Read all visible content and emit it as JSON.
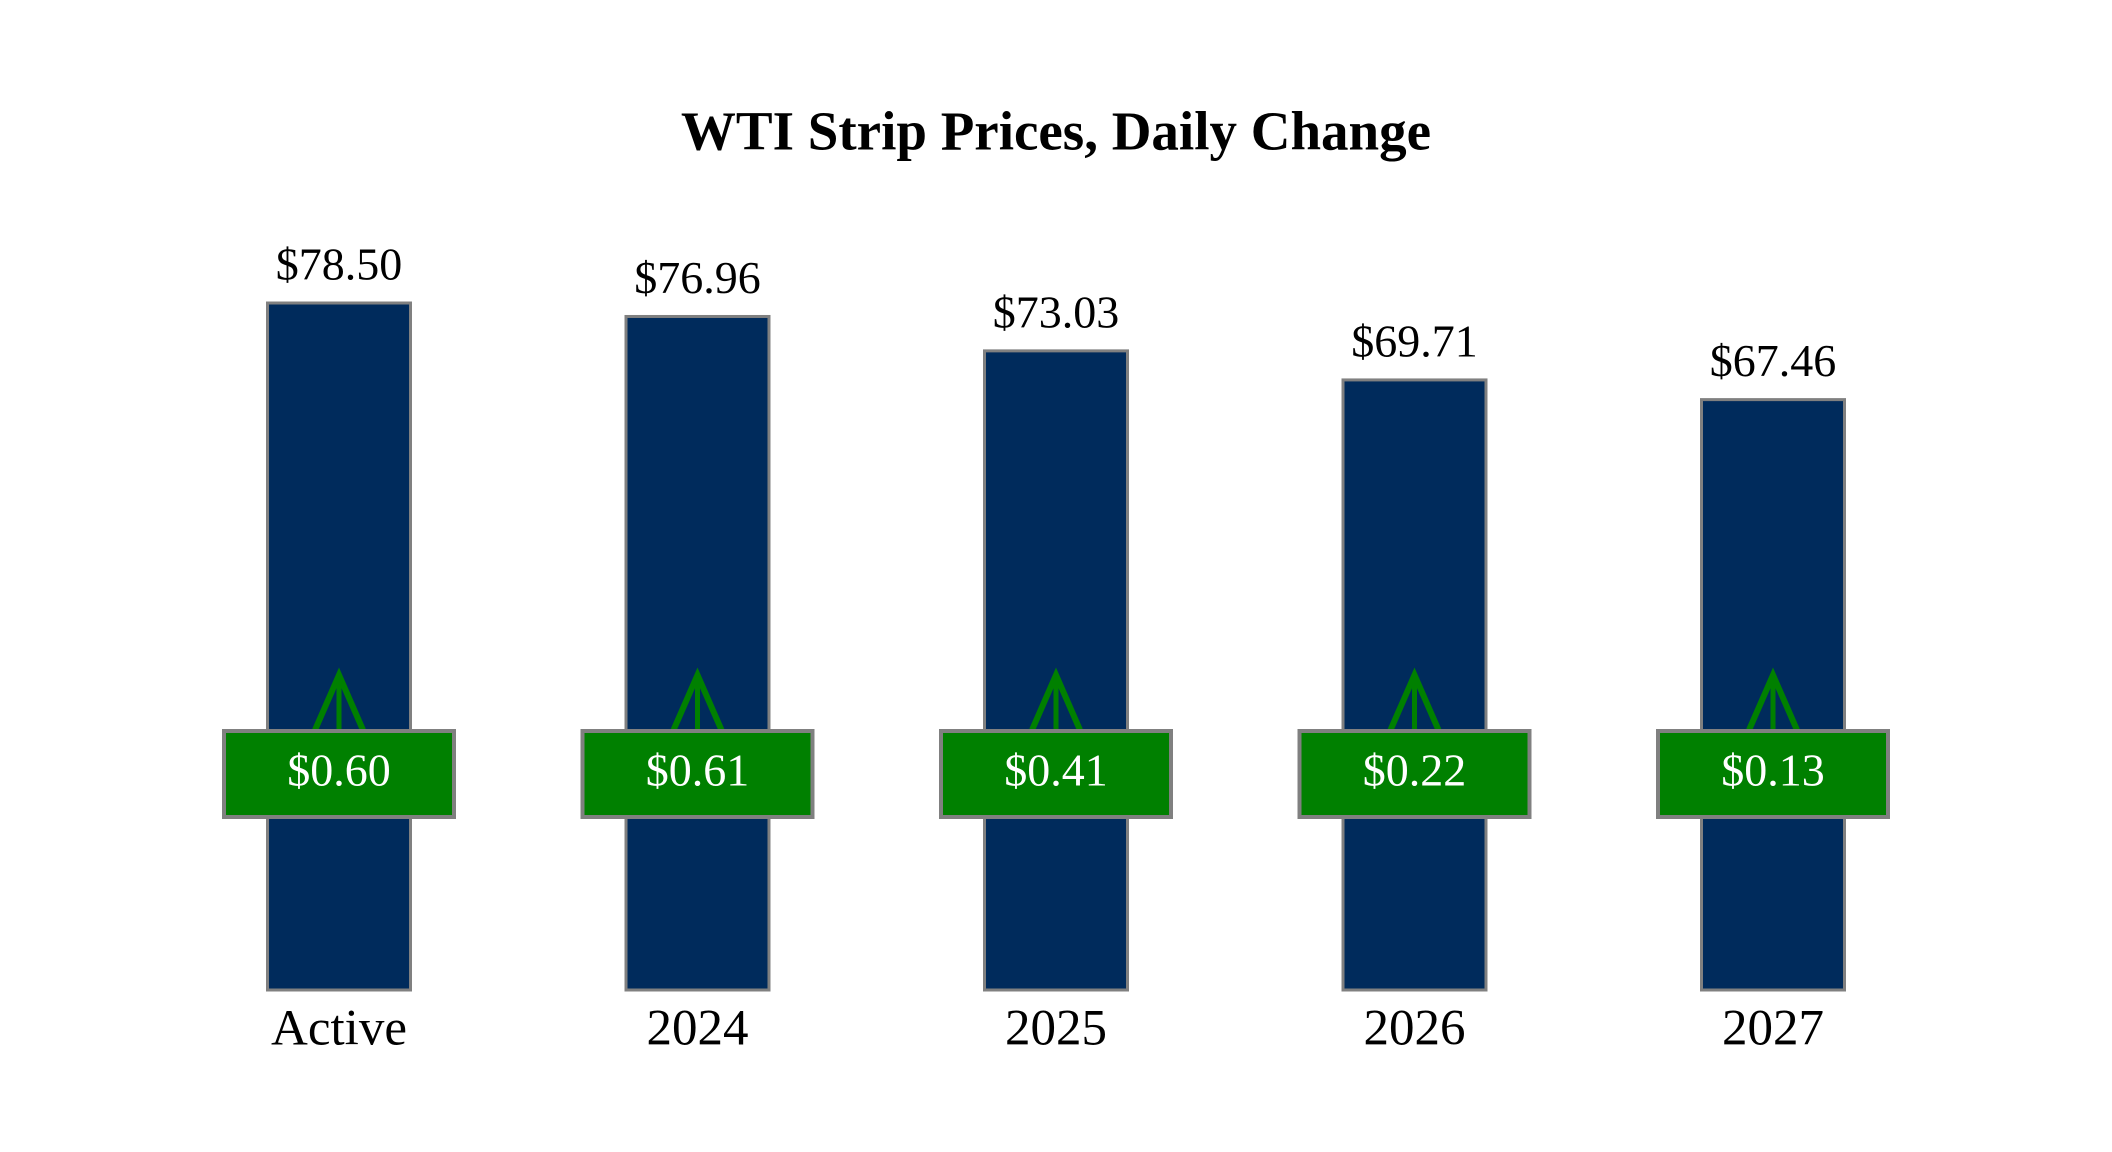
{
  "chart_data": {
    "type": "bar",
    "title": "WTI Strip Prices, Daily Change",
    "categories": [
      "Active",
      "2024",
      "2025",
      "2026",
      "2027"
    ],
    "values": [
      78.5,
      76.96,
      73.03,
      69.71,
      67.46
    ],
    "value_labels": [
      "$78.50",
      "$76.96",
      "$73.03",
      "$69.71",
      "$67.46"
    ],
    "changes": [
      0.6,
      0.61,
      0.41,
      0.22,
      0.13
    ],
    "change_labels": [
      "$0.60",
      "$0.61",
      "$0.41",
      "$0.22",
      "$0.13"
    ],
    "color": "#002b5c",
    "change_color": "#008000",
    "border_color": "#808080"
  }
}
